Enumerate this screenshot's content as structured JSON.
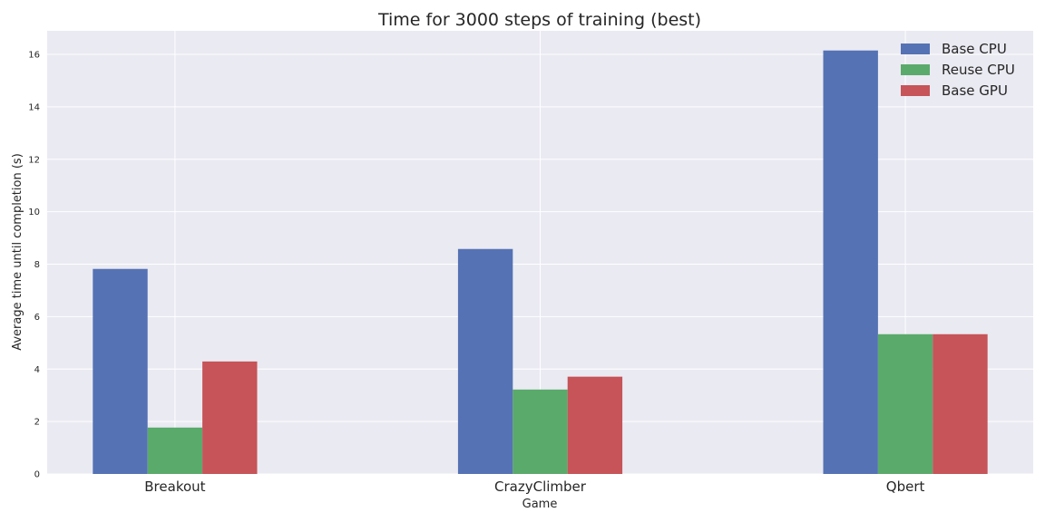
{
  "chart_data": {
    "type": "bar",
    "title": "Time for 3000 steps of training (best)",
    "xlabel": "Game",
    "ylabel": "Average time until completion (s)",
    "categories": [
      "Breakout",
      "CrazyClimber",
      "Qbert"
    ],
    "series": [
      {
        "name": "Base CPU",
        "color": "#5572b4",
        "values": [
          7.82,
          8.58,
          16.15
        ]
      },
      {
        "name": "Reuse CPU",
        "color": "#5aaa6b",
        "values": [
          1.77,
          3.22,
          5.33
        ]
      },
      {
        "name": "Base GPU",
        "color": "#c65458",
        "values": [
          4.29,
          3.71,
          5.33
        ]
      }
    ],
    "ylim": [
      0,
      16.9
    ],
    "yticks": [
      0,
      2,
      4,
      6,
      8,
      10,
      12,
      14,
      16
    ],
    "grid": true,
    "legend": "top-right",
    "plot_background": "#eaeaf2"
  }
}
